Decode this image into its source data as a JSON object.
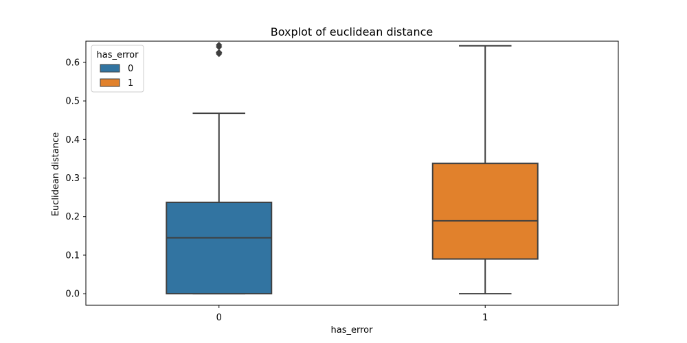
{
  "chart_data": {
    "type": "box",
    "title": "Boxplot of euclidean distance",
    "xlabel": "has_error",
    "ylabel": "Euclidean distance",
    "categories": [
      "0",
      "1"
    ],
    "ylim": [
      -0.03,
      0.655
    ],
    "y_ticks": [
      "0.0",
      "0.1",
      "0.2",
      "0.3",
      "0.4",
      "0.5",
      "0.6"
    ],
    "grid": false,
    "legend": {
      "title": "has_error",
      "position": "top-left",
      "entries": [
        {
          "label": "0",
          "color": "#3274a1"
        },
        {
          "label": "1",
          "color": "#e1812c"
        }
      ]
    },
    "series": [
      {
        "name": "0",
        "color": "#3274a1",
        "whisker_low": 0.0,
        "q1": 0.0,
        "median": 0.145,
        "q3": 0.237,
        "whisker_high": 0.468,
        "outliers": [
          0.622,
          0.626,
          0.64,
          0.645
        ]
      },
      {
        "name": "1",
        "color": "#e1812c",
        "whisker_low": 0.0,
        "q1": 0.09,
        "median": 0.189,
        "q3": 0.338,
        "whisker_high": 0.643,
        "outliers": []
      }
    ]
  }
}
